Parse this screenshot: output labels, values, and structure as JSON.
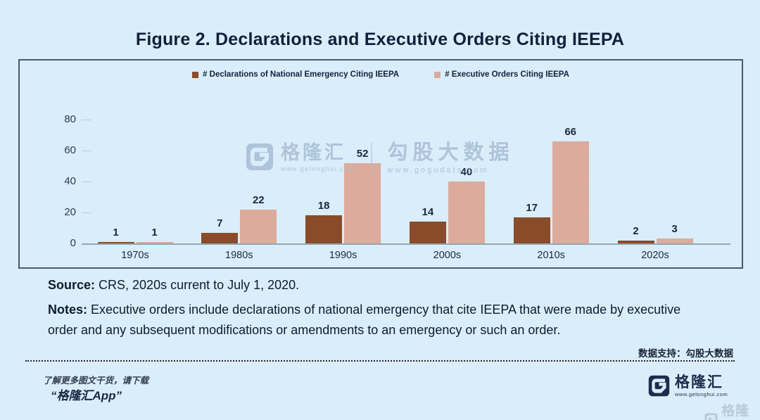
{
  "title": "Figure 2. Declarations and Executive Orders Citing IEEPA",
  "chart_data": {
    "type": "bar",
    "title": "Figure 2. Declarations and Executive Orders Citing IEEPA",
    "categories": [
      "1970s",
      "1980s",
      "1990s",
      "2000s",
      "2010s",
      "2020s"
    ],
    "series": [
      {
        "name": "# Declarations of National Emergency Citing IEEPA",
        "color": "#8a4b2a",
        "values": [
          1,
          7,
          18,
          14,
          17,
          2
        ]
      },
      {
        "name": "# Executive Orders Citing IEEPA",
        "color": "#dcab9b",
        "values": [
          1,
          22,
          52,
          40,
          66,
          3
        ]
      }
    ],
    "xlabel": "",
    "ylabel": "",
    "ylim": [
      0,
      80
    ],
    "yticks": [
      0,
      20,
      40,
      60,
      80
    ],
    "grid": true,
    "legend_position": "top",
    "value_labels": true
  },
  "source": {
    "label": "Source:",
    "text": " CRS, 2020s current to July 1, 2020."
  },
  "notes": {
    "label": "Notes:",
    "text": " Executive orders include declarations of national emergency that cite IEEPA that were made by executive order and any subsequent modifications or amendments to an emergency or such an order."
  },
  "watermark": {
    "brand": "格隆汇",
    "brand_url": "www.gelonghui.com",
    "partner": "勾股大数据",
    "partner_url": "www.gogudata.com"
  },
  "footer": {
    "data_support": "数据支持：勾股大数据",
    "promo_line1": "了解更多图文干货，请下载",
    "promo_line2": "“格隆汇App”",
    "brand": "格隆汇",
    "brand_url": "www.gelonghui.com"
  },
  "colors": {
    "background": "#d9edfa",
    "text_dark": "#131f3a",
    "brand_navy": "#1d2c4c",
    "watermark_blue": "#a7bdd5",
    "bar_declarations": "#8a4b2a",
    "bar_orders": "#dcab9b",
    "gridline": "#e6f1f8",
    "baseline": "#94a6b2"
  }
}
